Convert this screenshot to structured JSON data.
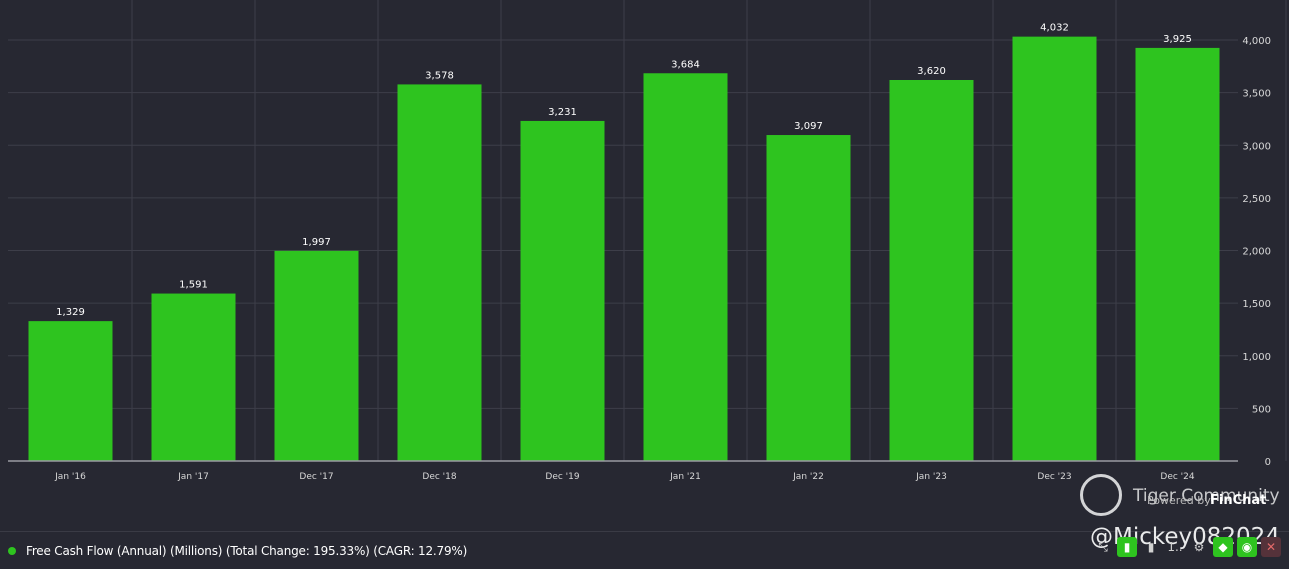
{
  "chart_data": {
    "type": "bar",
    "categories": [
      "Jan '16",
      "Jan '17",
      "Dec '17",
      "Dec '18",
      "Dec '19",
      "Jan '21",
      "Jan '22",
      "Jan '23",
      "Dec '23",
      "Dec '24"
    ],
    "values": [
      1329,
      1591,
      1997,
      3578,
      3231,
      3684,
      3097,
      3620,
      4032,
      3925
    ],
    "value_labels": [
      "1,329",
      "1,591",
      "1,997",
      "3,578",
      "3,231",
      "3,684",
      "3,097",
      "3,620",
      "4,032",
      "3,925"
    ],
    "ylim": [
      0,
      4200
    ],
    "yticks": [
      0,
      500,
      1000,
      1500,
      2000,
      2500,
      3000,
      3500,
      4000
    ],
    "ytick_labels": [
      "0",
      "500",
      "1,000",
      "1,500",
      "2,000",
      "2,500",
      "3,000",
      "3,500",
      "4,000"
    ],
    "y_axis_side": "right",
    "grid": true,
    "bar_color": "#2ec41f",
    "background_color": "#272832",
    "grid_color": "#3d3e49"
  },
  "legend": {
    "text": "Free Cash Flow (Annual) (Millions) (Total Change: 195.33%) (CAGR: 12.79%)",
    "color": "#2ec41f"
  },
  "branding": {
    "powered_by": "Powered by",
    "finchat": "FinChat"
  },
  "watermark": {
    "community": "Tiger Community",
    "handle": "@Mickey082024"
  },
  "toolbar": {
    "icons": [
      "compress-icon",
      "bar-chart-icon",
      "bar-chart-alt-icon",
      "more-icon",
      "gear-icon",
      "tag-icon",
      "eye-icon",
      "close-icon"
    ],
    "more_label": "1.."
  }
}
